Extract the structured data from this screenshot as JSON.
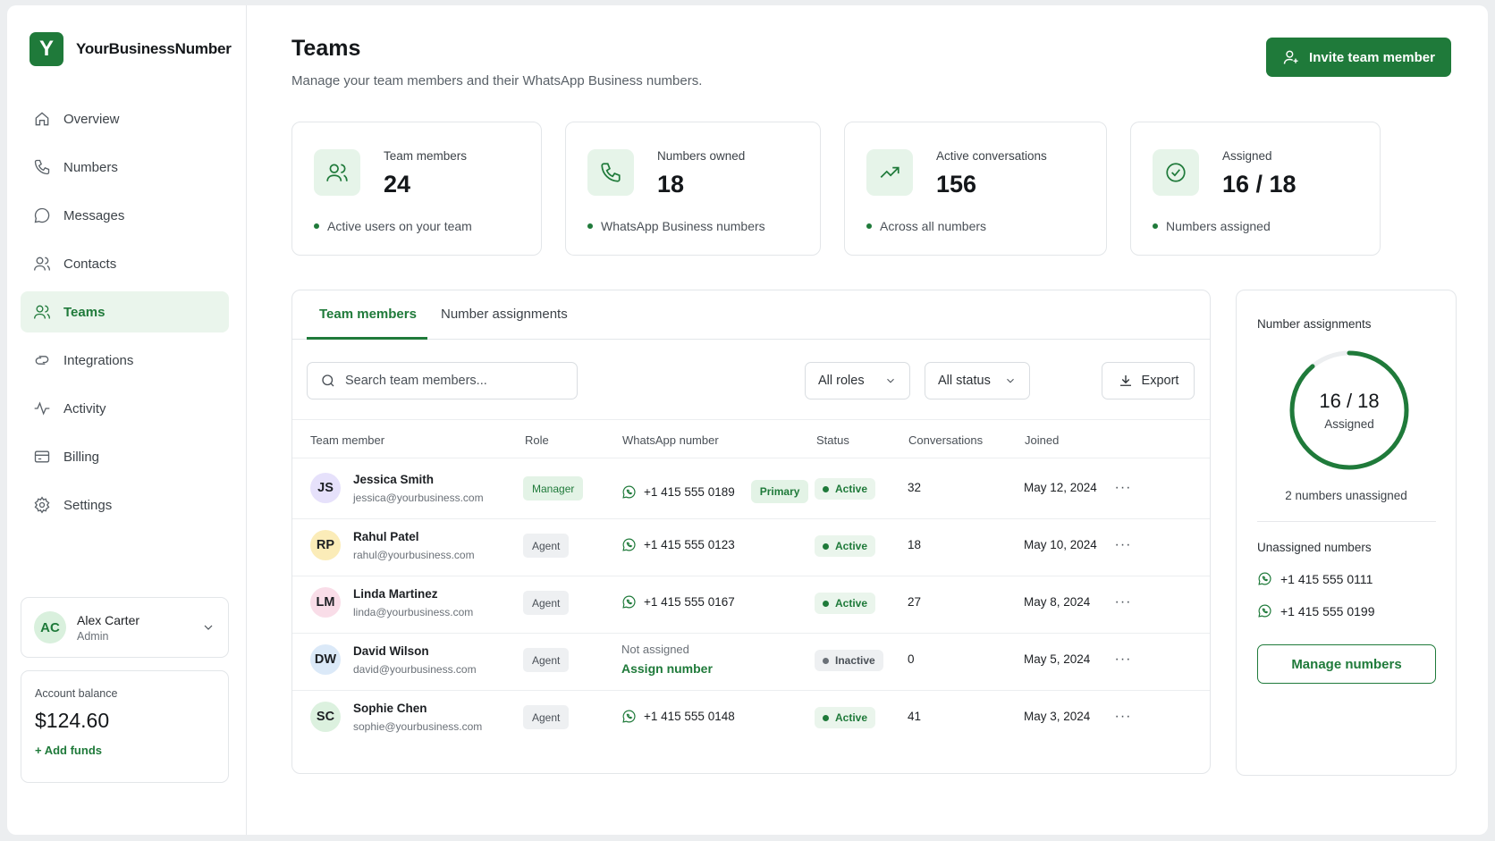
{
  "brand": {
    "logo_letter": "Y",
    "name": "YourBusinessNumber",
    "accent": "#1f7a3a"
  },
  "sidebar": {
    "items": [
      {
        "label": "Overview",
        "icon": "home-icon"
      },
      {
        "label": "Numbers",
        "icon": "phone-icon"
      },
      {
        "label": "Messages",
        "icon": "message-icon"
      },
      {
        "label": "Contacts",
        "icon": "contacts-icon"
      },
      {
        "label": "Teams",
        "icon": "team-icon",
        "active": true
      },
      {
        "label": "Integrations",
        "icon": "integrations-icon"
      },
      {
        "label": "Activity",
        "icon": "activity-icon"
      },
      {
        "label": "Billing",
        "icon": "billing-icon"
      },
      {
        "label": "Settings",
        "icon": "gear-icon"
      }
    ],
    "user": {
      "initials": "AC",
      "name": "Alex Carter",
      "role": "Admin"
    },
    "balance": {
      "label": "Account balance",
      "value": "$124.60",
      "add_funds": "+ Add funds"
    }
  },
  "header": {
    "title": "Teams",
    "subtitle": "Manage your team members and their WhatsApp Business numbers.",
    "invite_label": "Invite team member"
  },
  "stats": [
    {
      "label": "Team members",
      "value": "24",
      "foot": "Active users on your team",
      "icon": "team-icon"
    },
    {
      "label": "Numbers owned",
      "value": "18",
      "foot": "WhatsApp Business numbers",
      "icon": "phone-icon"
    },
    {
      "label": "Active conversations",
      "value": "156",
      "foot": "Across all numbers",
      "icon": "trend-up-icon"
    },
    {
      "label": "Assigned",
      "value": "16 / 18",
      "foot": "Numbers assigned",
      "icon": "check-circle-icon"
    }
  ],
  "tabs": [
    {
      "label": "Team members",
      "active": true
    },
    {
      "label": "Number assignments",
      "active": false
    }
  ],
  "filters": {
    "search_placeholder": "Search team members...",
    "roles": "All roles",
    "status": "All status",
    "export": "Export"
  },
  "table": {
    "columns": [
      "Team member",
      "Role",
      "WhatsApp number",
      "Status",
      "Conversations",
      "Joined"
    ],
    "rows": [
      {
        "initials": "JS",
        "avatar_color": "#e6e1fb",
        "name": "Jessica Smith",
        "email": "jessica@yourbusiness.com",
        "role": "Manager",
        "number": "+1 415 555 0189",
        "primary": "Primary",
        "status": "Active",
        "conversations": "32",
        "joined": "May 12, 2024"
      },
      {
        "initials": "RP",
        "avatar_color": "#fbecb8",
        "name": "Rahul Patel",
        "email": "rahul@yourbusiness.com",
        "role": "Agent",
        "number": "+1 415 555 0123",
        "status": "Active",
        "conversations": "18",
        "joined": "May 10, 2024"
      },
      {
        "initials": "LM",
        "avatar_color": "#f9dde8",
        "name": "Linda Martinez",
        "email": "linda@yourbusiness.com",
        "role": "Agent",
        "number": "+1 415 555 0167",
        "status": "Active",
        "conversations": "27",
        "joined": "May 8, 2024"
      },
      {
        "initials": "DW",
        "avatar_color": "#dbe9f8",
        "name": "David Wilson",
        "email": "david@yourbusiness.com",
        "role": "Agent",
        "not_assigned": "Not assigned",
        "assign_label": "Assign number",
        "status": "Inactive",
        "conversations": "0",
        "joined": "May 5, 2024"
      },
      {
        "initials": "SC",
        "avatar_color": "#dcf1df",
        "name": "Sophie Chen",
        "email": "sophie@yourbusiness.com",
        "role": "Agent",
        "number": "+1 415 555 0148",
        "status": "Active",
        "conversations": "41",
        "joined": "May 3, 2024"
      }
    ]
  },
  "assignments": {
    "title": "Number assignments",
    "ring_value": "16 / 18",
    "ring_label": "Assigned",
    "ring_fraction": 0.889,
    "unassigned_count": "2 numbers unassigned",
    "unassigned_title": "Unassigned numbers",
    "unassigned": [
      "+1 415 555 0111",
      "+1 415 555 0199"
    ],
    "manage_label": "Manage numbers"
  }
}
